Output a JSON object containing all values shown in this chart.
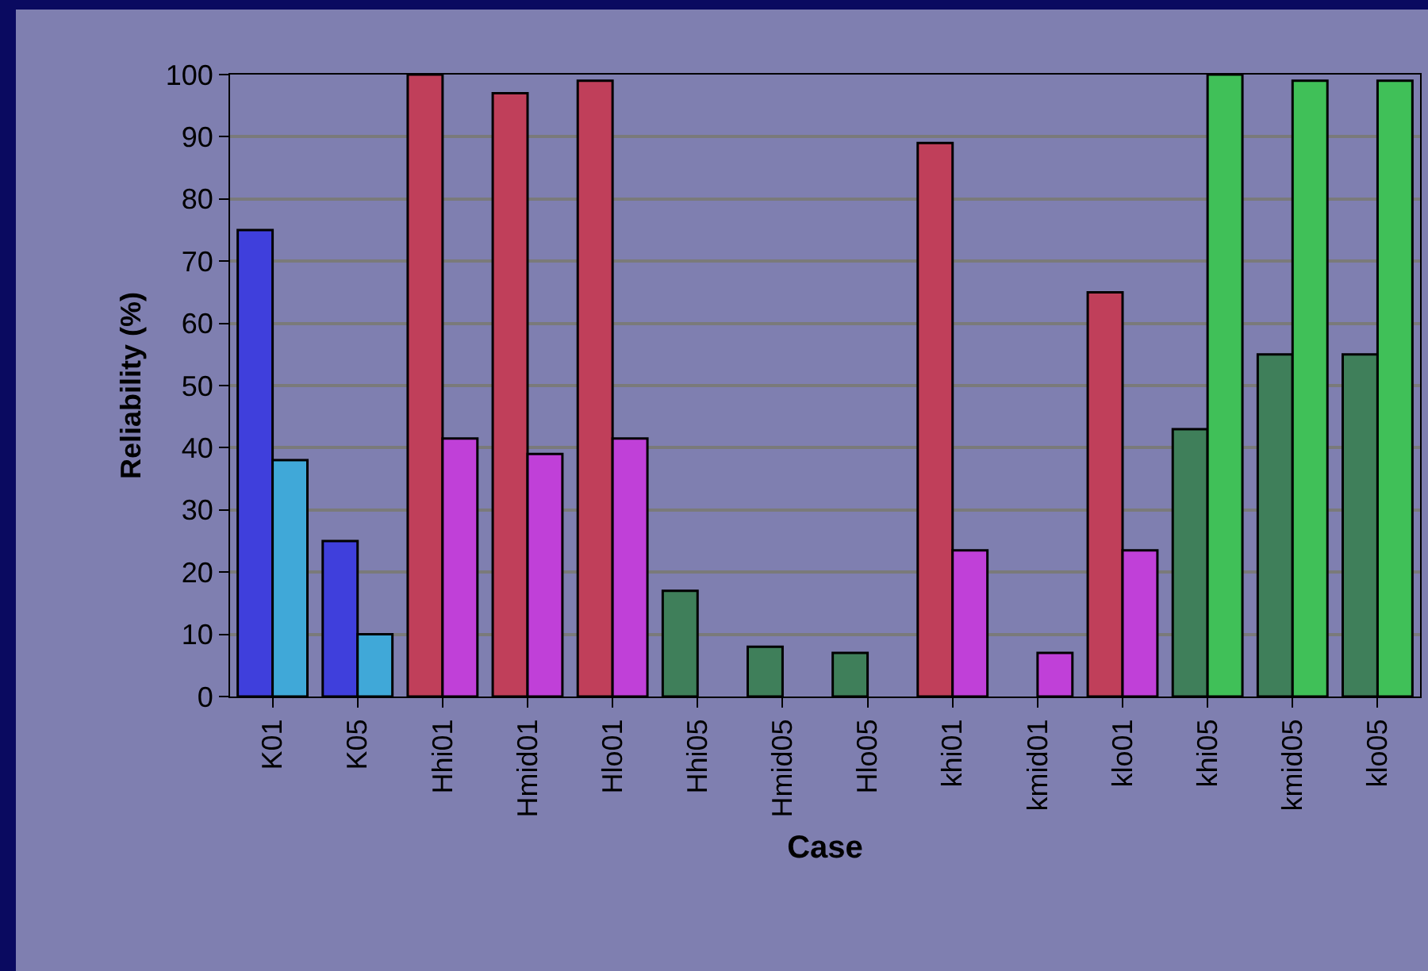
{
  "chart_data": {
    "type": "bar",
    "xlabel": "Case",
    "ylabel": "Reliability (%)",
    "categories": [
      "K01",
      "K05",
      "Hhi01",
      "Hmid01",
      "Hlo01",
      "Hhi05",
      "Hmid05",
      "Hlo05",
      "khi01",
      "kmid01",
      "klo01",
      "khi05",
      "kmid05",
      "klo05"
    ],
    "series": [
      {
        "colors": [
          "#3f3fdc",
          "#3f3fdc",
          "#c03f5a",
          "#c03f5a",
          "#c03f5a",
          "#3f7f5a",
          "#3f7f5a",
          "#3f7f5a",
          "#c03f5a",
          "#c03f5a",
          "#c03f5a",
          "#3f7f5a",
          "#3f7f5a",
          "#3f7f5a"
        ],
        "values": [
          75,
          25,
          100,
          97,
          99,
          17,
          8,
          7,
          89,
          null,
          65,
          43,
          55,
          55
        ]
      },
      {
        "colors": [
          "#40a8d8",
          "#40a8d8",
          "#c040d8",
          "#c040d8",
          "#c040d8",
          "#40c058",
          "#40c058",
          "#40c058",
          "#c040d8",
          "#c040d8",
          "#c040d8",
          "#40c058",
          "#40c058",
          "#40c058"
        ],
        "values": [
          38,
          10,
          41.5,
          39,
          41.5,
          null,
          null,
          null,
          23.5,
          7,
          23.5,
          100,
          99,
          99
        ]
      }
    ],
    "ylim": [
      0,
      100
    ],
    "yticks": [
      0,
      10,
      20,
      30,
      40,
      50,
      60,
      70,
      80,
      90,
      100
    ],
    "grid": "y"
  }
}
